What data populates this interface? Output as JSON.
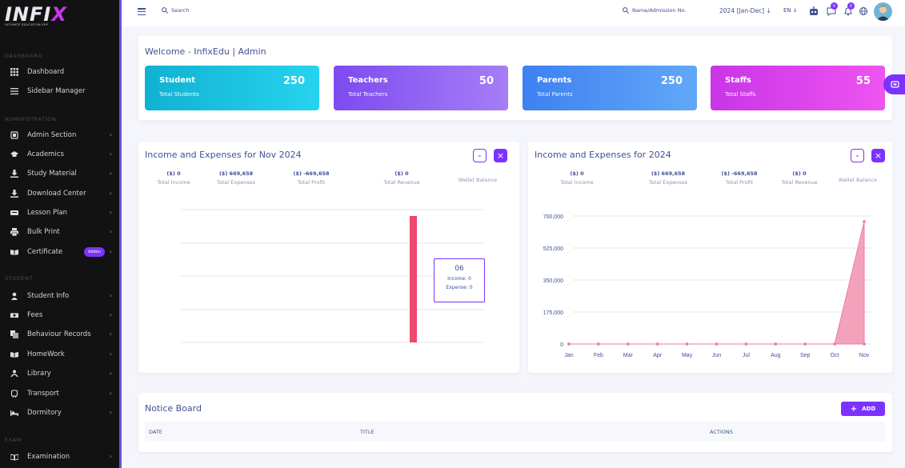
{
  "brand": {
    "logo_main": "INFI",
    "logo_x": "X",
    "tagline": "ULTIMATE EDUCATION ERP"
  },
  "sidebar": {
    "sections": [
      "DASHBOARD",
      "ADMINISTRATION",
      "STUDENT",
      "EXAM"
    ],
    "items": [
      {
        "label": "Dashboard",
        "icon": "grid-icon"
      },
      {
        "label": "Sidebar Manager",
        "icon": "list-icon"
      },
      {
        "label": "Admin Section",
        "icon": "admin-icon"
      },
      {
        "label": "Academics",
        "icon": "graduation-cap-icon"
      },
      {
        "label": "Study Material",
        "icon": "download-icon"
      },
      {
        "label": "Download Center",
        "icon": "download-icon"
      },
      {
        "label": "Lesson Plan",
        "icon": "lesson-plan-icon"
      },
      {
        "label": "Bulk Print",
        "icon": "print-icon"
      },
      {
        "label": "Certificate",
        "icon": "book-open-icon",
        "badge": "Addon"
      },
      {
        "label": "Student Info",
        "icon": "users-icon"
      },
      {
        "label": "Fees",
        "icon": "money-icon"
      },
      {
        "label": "Behaviour Records",
        "icon": "records-icon"
      },
      {
        "label": "HomeWork",
        "icon": "book-open-icon"
      },
      {
        "label": "Library",
        "icon": "library-icon"
      },
      {
        "label": "Transport",
        "icon": "bus-icon"
      },
      {
        "label": "Dormitory",
        "icon": "bed-icon"
      },
      {
        "label": "Examination",
        "icon": "exam-icon"
      }
    ]
  },
  "topbar": {
    "search_label": "Search",
    "name_search": "Name/Admission No.",
    "year": "2024 [Jan-Dec]",
    "lang": "EN",
    "badge1": "0",
    "badge2": "0"
  },
  "welcome": "Welcome - InfixEdu | Admin",
  "stats": [
    {
      "title": "Student",
      "sub": "Total Students",
      "value": "250"
    },
    {
      "title": "Teachers",
      "sub": "Total Teachers",
      "value": "50"
    },
    {
      "title": "Parents",
      "sub": "Total Parents",
      "value": "250"
    },
    {
      "title": "Staffs",
      "sub": "Total Staffs",
      "value": "55"
    }
  ],
  "monthly": {
    "title": "Income and Expenses for Nov 2024",
    "summary": [
      {
        "value": "($) 0",
        "label": "Total Income"
      },
      {
        "value": "($) 669,658",
        "label": "Total Expenses"
      },
      {
        "value": "($) -669,658",
        "label": "Total Profit"
      },
      {
        "value": "($) 0",
        "label": "Total Revenue"
      }
    ],
    "wallet": "Wallet Balance",
    "tooltip": {
      "day": "06",
      "income": "Income: 0",
      "expense": "Expense: 0"
    }
  },
  "yearly": {
    "title": "Income and Expenses for 2024",
    "summary": [
      {
        "value": "($) 0",
        "label": "Total Income"
      },
      {
        "value": "($) 669,658",
        "label": "Total Expenses"
      },
      {
        "value": "($) -669,658",
        "label": "Total Profit"
      },
      {
        "value": "($) 0",
        "label": "Total Revenue"
      }
    ],
    "wallet": "Wallet Balance"
  },
  "chart_data": [
    {
      "type": "bar",
      "title": "Income and Expenses for Nov 2024",
      "categories": [
        "06"
      ],
      "series": [
        {
          "name": "Income",
          "values": [
            0
          ]
        },
        {
          "name": "Expense",
          "values": [
            0
          ]
        }
      ],
      "grid": true,
      "bar_color": "#ef476f"
    },
    {
      "type": "area",
      "title": "Income and Expenses for 2024",
      "x": [
        "Jan",
        "Feb",
        "Mar",
        "Apr",
        "May",
        "Jun",
        "Jul",
        "Aug",
        "Sep",
        "Oct",
        "Nov"
      ],
      "y_ticks": [
        "0",
        "175,000",
        "350,000",
        "525,000",
        "700,000"
      ],
      "ylim": [
        0,
        700000
      ],
      "series": [
        {
          "name": "Income",
          "values": [
            0,
            0,
            0,
            0,
            0,
            0,
            0,
            0,
            0,
            0,
            0
          ],
          "color": "#a07cf0"
        },
        {
          "name": "Expense",
          "values": [
            0,
            0,
            0,
            0,
            0,
            0,
            0,
            0,
            0,
            0,
            669658
          ],
          "color": "#ef7aa0"
        }
      ],
      "grid": true
    }
  ],
  "notice": {
    "title": "Notice Board",
    "add_label": "ADD",
    "columns": [
      "DATE",
      "TITLE",
      "ACTIONS"
    ]
  },
  "colors": {
    "accent": "#7c32ff",
    "text": "#415094"
  }
}
